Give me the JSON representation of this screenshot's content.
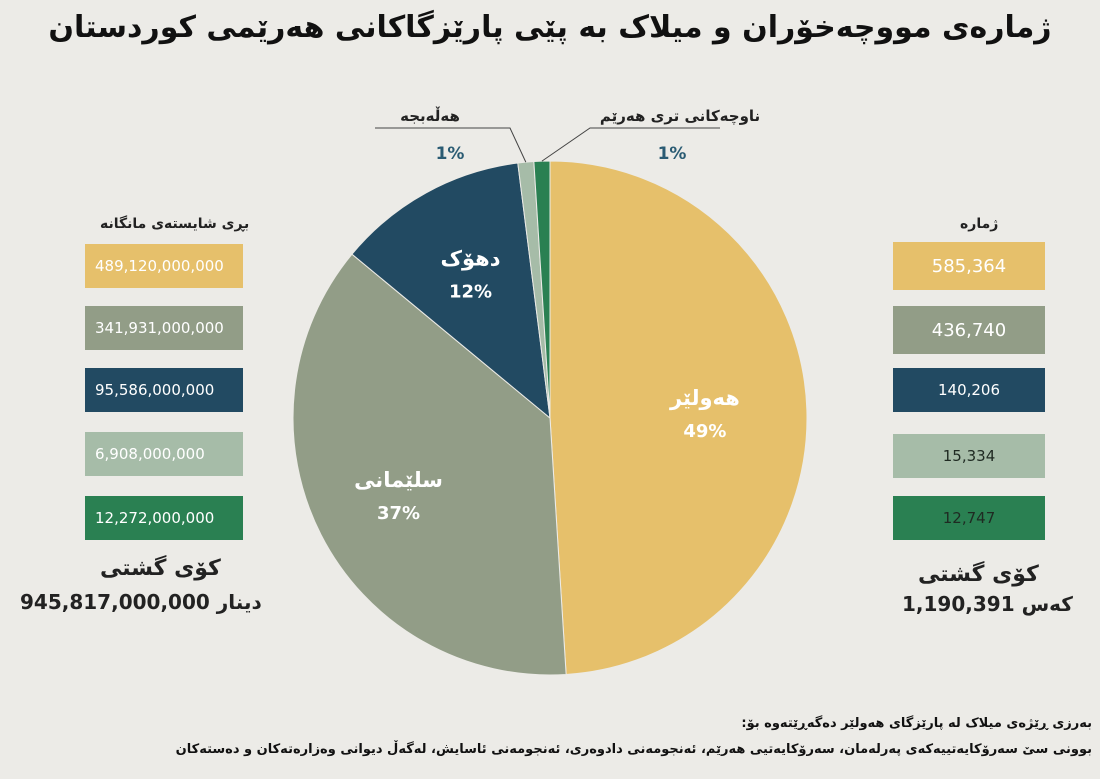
{
  "title": "ژمارەی مووچەخۆران و میلاک بە پێی پارێزگاکانی هەرێمی کوردستان",
  "colors": {
    "erbil": "#e6c06b",
    "sulaymaniyah": "#929d87",
    "duhok": "#224a62",
    "halabja": "#a6bca8",
    "other": "#2a8052"
  },
  "left_column": {
    "header": "بڕی شایستەی مانگانە",
    "values": [
      "489,120,000,000",
      "341,931,000,000",
      "95,586,000,000",
      "6,908,000,000",
      "12,272,000,000"
    ],
    "total_title": "کۆی گشتی",
    "total_value": "945,817,000,000",
    "total_unit": "دینار"
  },
  "right_column": {
    "header": "ژمارە",
    "values": [
      "585,364",
      "436,740",
      "140,206",
      "15,334",
      "12,747"
    ],
    "total_title": "کۆی گشتی",
    "total_value": "1,190,391",
    "total_unit": "کەس"
  },
  "chart_data": {
    "type": "pie",
    "slices": [
      {
        "label": "هەولێر",
        "value": 49,
        "display": "49%",
        "color": "#e6c06b"
      },
      {
        "label": "سلێمانی",
        "value": 37,
        "display": "37%",
        "color": "#929d87"
      },
      {
        "label": "دهۆک",
        "value": 12,
        "display": "12%",
        "color": "#224a62"
      },
      {
        "label": "هەڵەبجە",
        "value": 1,
        "display": "1%",
        "color": "#a6bca8"
      },
      {
        "label": "ناوچەکانی تری هەرێم",
        "value": 1,
        "display": "1%",
        "color": "#2a8052"
      }
    ]
  },
  "note": {
    "line1": "بەرزی ڕێژەی میلاک لە پارێزگای هەولێر دەگەڕێتەوە بۆ:",
    "line2": "بوونی سێ سەرۆکایەتییەکەی پەرلەمان، سەرۆکایەتیی هەرێم، ئەنجومەنی دادوەری، ئەنجومەنی ئاسایش، لەگەڵ دیوانی وەزارەتەکان و دەستەکان"
  }
}
